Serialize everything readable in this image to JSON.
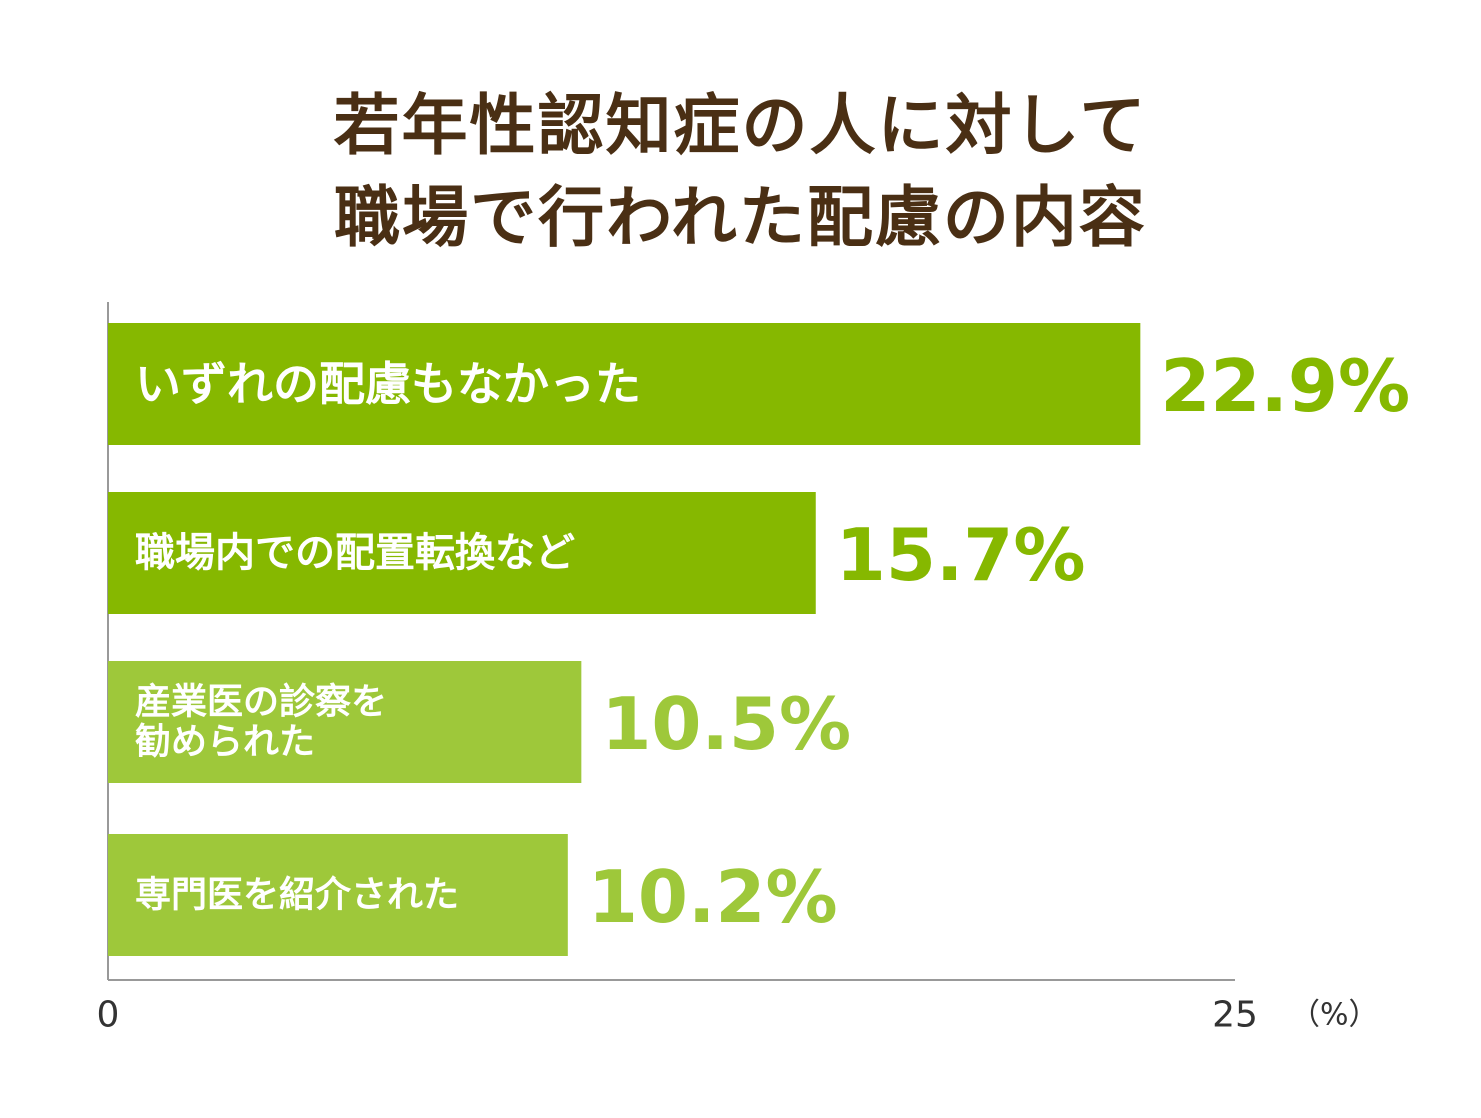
{
  "chart_data": {
    "type": "bar",
    "orientation": "horizontal",
    "title_lines": [
      "若年性認知症の人に対して",
      "職場で行われた配慮の内容"
    ],
    "categories": [
      [
        "いずれの配慮もなかった"
      ],
      [
        "職場内での配置転換など"
      ],
      [
        "産業医の診察を",
        "勧められた"
      ],
      [
        "専門医を紹介された"
      ]
    ],
    "values": [
      22.9,
      15.7,
      10.5,
      10.2
    ],
    "value_labels": [
      "22.9%",
      "15.7%",
      "10.5%",
      "10.2%"
    ],
    "xlim": [
      0,
      25
    ],
    "tick_labels": [
      "0",
      "25"
    ],
    "unit_label": "（%）",
    "grid": false,
    "colors": {
      "title": "#4a2f14",
      "bars": [
        "#86b800",
        "#86b800",
        "#9ec83a",
        "#9ec83a"
      ],
      "value_labels": [
        "#86b800",
        "#86b800",
        "#9ec83a",
        "#9ec83a"
      ],
      "axis": "#999999"
    }
  }
}
